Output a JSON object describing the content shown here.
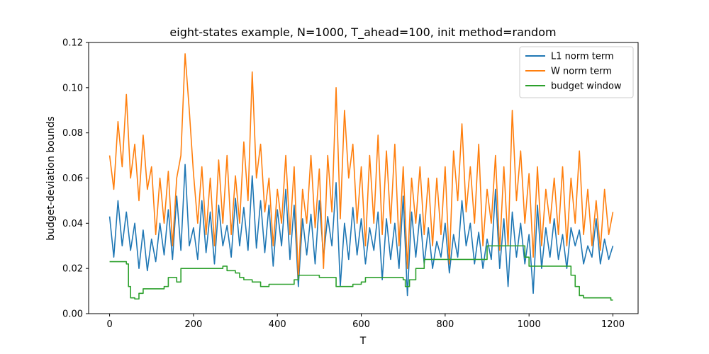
{
  "chart_data": {
    "type": "line",
    "title": "eight-states example, N=1000, T_ahead=100, init method=random",
    "xlabel": "T",
    "ylabel": "budget-deviation bounds",
    "xlim": [
      -50,
      1260
    ],
    "ylim": [
      0,
      0.12
    ],
    "xticks": [
      0,
      200,
      400,
      600,
      800,
      1000,
      1200
    ],
    "xtick_labels": [
      "0",
      "200",
      "400",
      "600",
      "800",
      "1000",
      "1200"
    ],
    "yticks": [
      0.0,
      0.02,
      0.04,
      0.06,
      0.08,
      0.1,
      0.12
    ],
    "ytick_labels": [
      "0.00",
      "0.02",
      "0.04",
      "0.06",
      "0.08",
      "0.10",
      "0.12"
    ],
    "grid": false,
    "legend_position": "top-right",
    "series": [
      {
        "name": "L1 norm term",
        "color": "#1f77b4",
        "x": [
          0,
          10,
          20,
          30,
          40,
          50,
          60,
          70,
          80,
          90,
          100,
          110,
          120,
          130,
          140,
          150,
          160,
          170,
          180,
          190,
          200,
          210,
          220,
          230,
          240,
          250,
          260,
          270,
          280,
          290,
          300,
          310,
          320,
          330,
          340,
          350,
          360,
          370,
          380,
          390,
          400,
          410,
          420,
          430,
          440,
          450,
          460,
          470,
          480,
          490,
          500,
          510,
          520,
          530,
          540,
          550,
          560,
          570,
          580,
          590,
          600,
          610,
          620,
          630,
          640,
          650,
          660,
          670,
          680,
          690,
          700,
          710,
          720,
          730,
          740,
          750,
          760,
          770,
          780,
          790,
          800,
          810,
          820,
          830,
          840,
          850,
          860,
          870,
          880,
          890,
          900,
          910,
          920,
          930,
          940,
          950,
          960,
          970,
          980,
          990,
          1000,
          1010,
          1020,
          1030,
          1040,
          1050,
          1060,
          1070,
          1080,
          1090,
          1100,
          1110,
          1120,
          1130,
          1140,
          1150,
          1160,
          1170,
          1180,
          1190,
          1200
        ],
        "values": [
          0.043,
          0.025,
          0.05,
          0.03,
          0.045,
          0.028,
          0.04,
          0.02,
          0.037,
          0.019,
          0.033,
          0.023,
          0.04,
          0.026,
          0.046,
          0.024,
          0.052,
          0.028,
          0.066,
          0.03,
          0.038,
          0.024,
          0.05,
          0.027,
          0.045,
          0.022,
          0.048,
          0.03,
          0.039,
          0.025,
          0.051,
          0.03,
          0.047,
          0.028,
          0.061,
          0.029,
          0.05,
          0.027,
          0.048,
          0.021,
          0.046,
          0.03,
          0.055,
          0.024,
          0.048,
          0.012,
          0.042,
          0.026,
          0.044,
          0.022,
          0.05,
          0.025,
          0.043,
          0.03,
          0.058,
          0.012,
          0.04,
          0.024,
          0.047,
          0.026,
          0.042,
          0.022,
          0.038,
          0.028,
          0.045,
          0.015,
          0.042,
          0.024,
          0.04,
          0.02,
          0.052,
          0.008,
          0.045,
          0.025,
          0.044,
          0.022,
          0.038,
          0.02,
          0.032,
          0.025,
          0.04,
          0.018,
          0.035,
          0.025,
          0.05,
          0.03,
          0.04,
          0.022,
          0.036,
          0.02,
          0.033,
          0.024,
          0.055,
          0.02,
          0.042,
          0.012,
          0.045,
          0.025,
          0.04,
          0.022,
          0.035,
          0.009,
          0.048,
          0.02,
          0.038,
          0.025,
          0.042,
          0.024,
          0.035,
          0.02,
          0.038,
          0.03,
          0.037,
          0.022,
          0.03,
          0.025,
          0.042,
          0.022,
          0.033,
          0.024,
          0.03
        ]
      },
      {
        "name": "W norm term",
        "color": "#ff7f0e",
        "x": [
          0,
          10,
          20,
          30,
          40,
          50,
          60,
          70,
          80,
          90,
          100,
          110,
          120,
          130,
          140,
          150,
          160,
          170,
          180,
          190,
          200,
          210,
          220,
          230,
          240,
          250,
          260,
          270,
          280,
          290,
          300,
          310,
          320,
          330,
          340,
          350,
          360,
          370,
          380,
          390,
          400,
          410,
          420,
          430,
          440,
          450,
          460,
          470,
          480,
          490,
          500,
          510,
          520,
          530,
          540,
          550,
          560,
          570,
          580,
          590,
          600,
          610,
          620,
          630,
          640,
          650,
          660,
          670,
          680,
          690,
          700,
          710,
          720,
          730,
          740,
          750,
          760,
          770,
          780,
          790,
          800,
          810,
          820,
          830,
          840,
          850,
          860,
          870,
          880,
          890,
          900,
          910,
          920,
          930,
          940,
          950,
          960,
          970,
          980,
          990,
          1000,
          1010,
          1020,
          1030,
          1040,
          1050,
          1060,
          1070,
          1080,
          1090,
          1100,
          1110,
          1120,
          1130,
          1140,
          1150,
          1160,
          1170,
          1180,
          1190,
          1200
        ],
        "values": [
          0.07,
          0.055,
          0.085,
          0.065,
          0.097,
          0.06,
          0.075,
          0.05,
          0.079,
          0.055,
          0.065,
          0.035,
          0.06,
          0.04,
          0.063,
          0.03,
          0.06,
          0.07,
          0.115,
          0.09,
          0.062,
          0.04,
          0.065,
          0.035,
          0.06,
          0.03,
          0.068,
          0.04,
          0.07,
          0.035,
          0.061,
          0.04,
          0.076,
          0.05,
          0.107,
          0.06,
          0.075,
          0.045,
          0.06,
          0.03,
          0.055,
          0.04,
          0.07,
          0.035,
          0.065,
          0.015,
          0.055,
          0.04,
          0.07,
          0.038,
          0.064,
          0.02,
          0.07,
          0.045,
          0.1,
          0.042,
          0.09,
          0.06,
          0.075,
          0.04,
          0.065,
          0.03,
          0.07,
          0.04,
          0.079,
          0.035,
          0.072,
          0.04,
          0.075,
          0.03,
          0.065,
          0.02,
          0.06,
          0.04,
          0.065,
          0.035,
          0.06,
          0.03,
          0.06,
          0.035,
          0.065,
          0.022,
          0.072,
          0.05,
          0.084,
          0.045,
          0.065,
          0.04,
          0.075,
          0.03,
          0.055,
          0.04,
          0.07,
          0.028,
          0.065,
          0.03,
          0.09,
          0.05,
          0.072,
          0.04,
          0.062,
          0.025,
          0.065,
          0.03,
          0.055,
          0.04,
          0.06,
          0.035,
          0.065,
          0.03,
          0.06,
          0.04,
          0.072,
          0.035,
          0.055,
          0.03,
          0.05,
          0.028,
          0.055,
          0.035,
          0.045
        ]
      },
      {
        "name": "budget window",
        "color": "#2ca02c",
        "x": [
          0,
          35,
          40,
          45,
          50,
          60,
          70,
          80,
          120,
          130,
          140,
          150,
          160,
          170,
          260,
          270,
          280,
          290,
          300,
          310,
          320,
          330,
          340,
          350,
          360,
          380,
          420,
          440,
          450,
          480,
          500,
          540,
          580,
          600,
          610,
          640,
          660,
          690,
          700,
          705,
          715,
          730,
          750,
          760,
          780,
          800,
          820,
          860,
          880,
          900,
          920,
          950,
          980,
          990,
          1000,
          1010,
          1020,
          1050,
          1070,
          1080,
          1090,
          1100,
          1110,
          1120,
          1130,
          1150,
          1190,
          1195,
          1200
        ],
        "values": [
          0.023,
          0.023,
          0.022,
          0.012,
          0.007,
          0.0065,
          0.009,
          0.011,
          0.011,
          0.012,
          0.016,
          0.016,
          0.014,
          0.02,
          0.02,
          0.021,
          0.019,
          0.019,
          0.018,
          0.016,
          0.015,
          0.015,
          0.014,
          0.014,
          0.012,
          0.013,
          0.013,
          0.015,
          0.017,
          0.017,
          0.016,
          0.012,
          0.013,
          0.014,
          0.016,
          0.016,
          0.016,
          0.016,
          0.015,
          0.012,
          0.015,
          0.02,
          0.024,
          0.024,
          0.024,
          0.024,
          0.024,
          0.024,
          0.024,
          0.03,
          0.03,
          0.03,
          0.03,
          0.025,
          0.021,
          0.021,
          0.021,
          0.021,
          0.021,
          0.021,
          0.021,
          0.017,
          0.012,
          0.008,
          0.007,
          0.007,
          0.007,
          0.006,
          0.006
        ]
      }
    ]
  }
}
